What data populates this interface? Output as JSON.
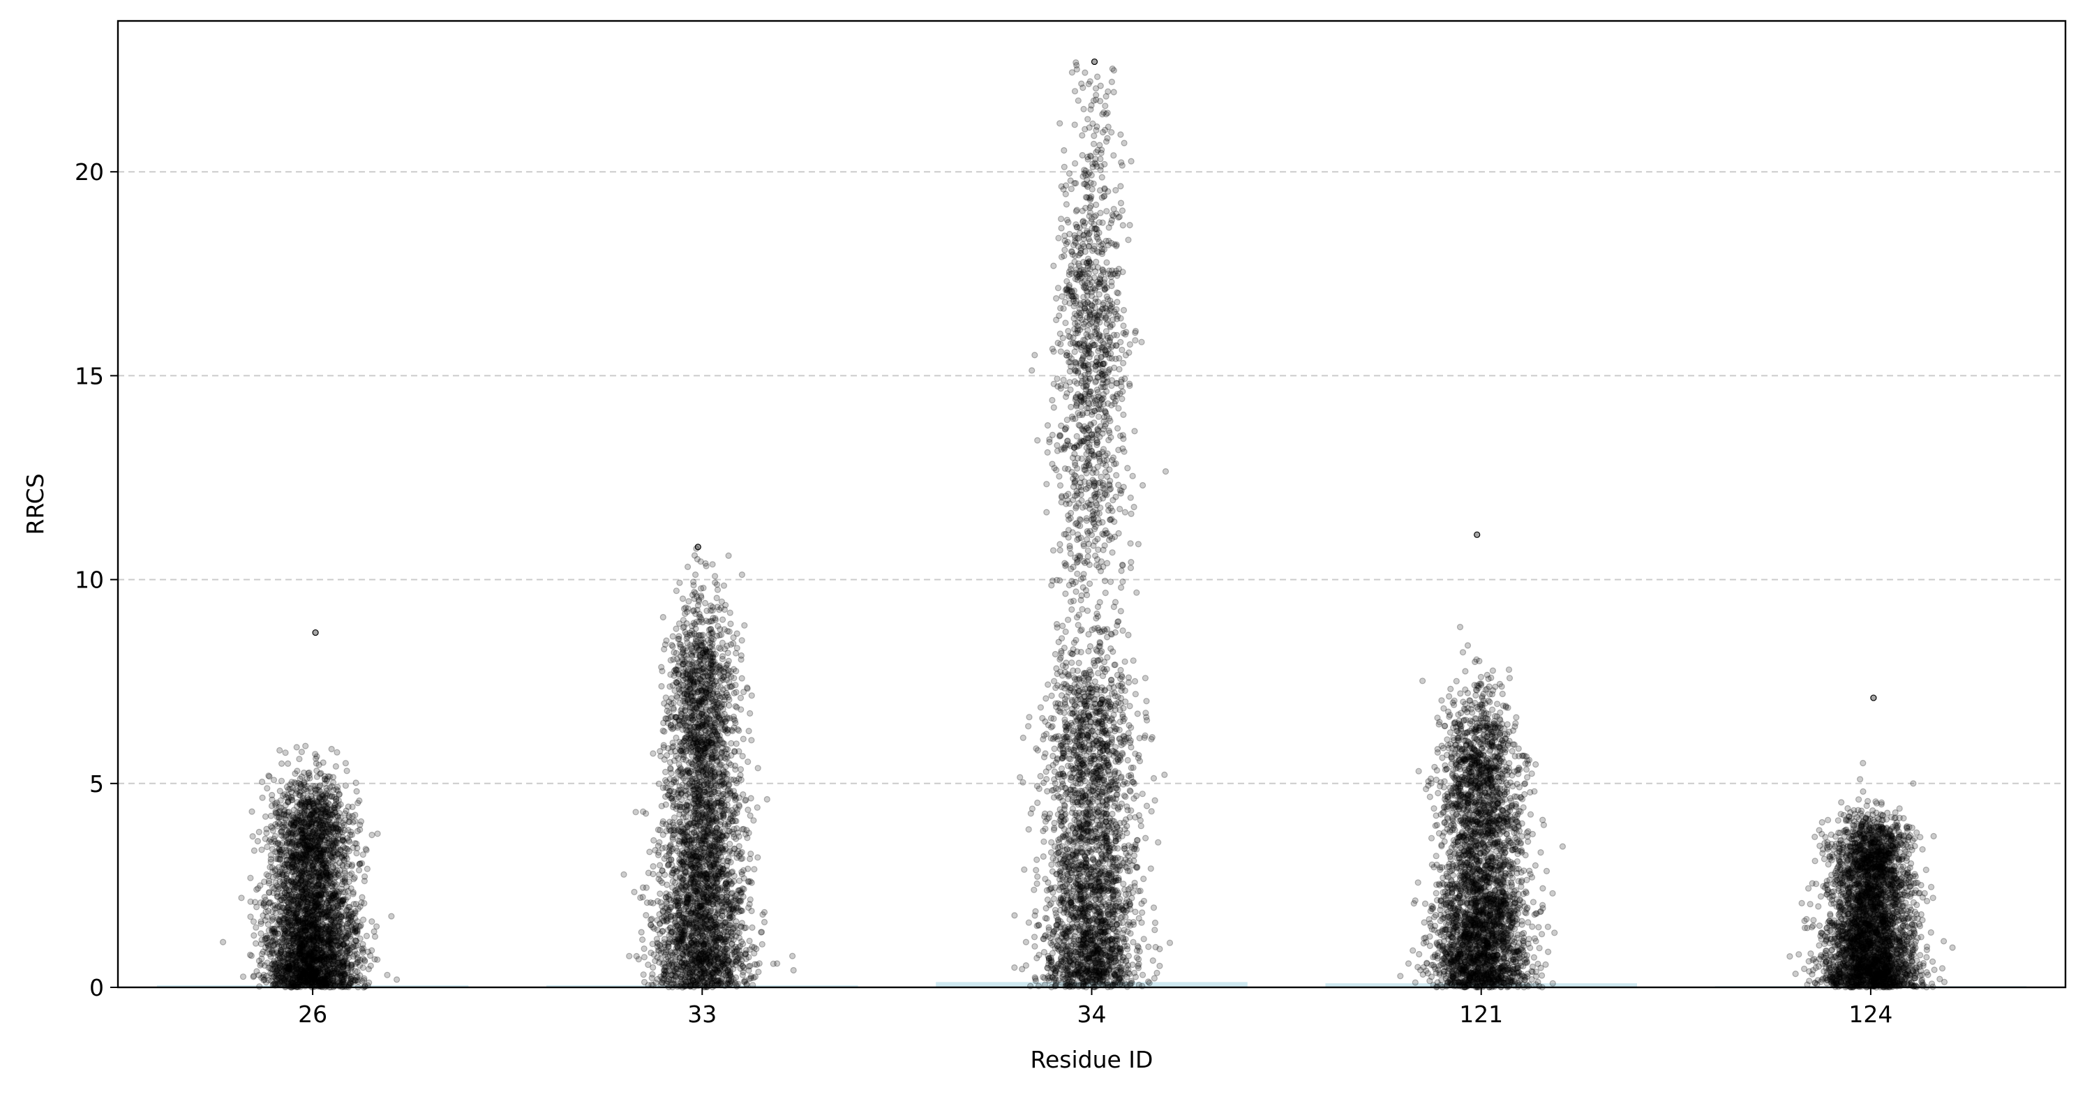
{
  "chart_data": {
    "type": "scatter",
    "subtype": "strip-plot with bars",
    "title": "",
    "xlabel": "Residue ID",
    "ylabel": "RRCS",
    "categories": [
      "26",
      "33",
      "34",
      "121",
      "124"
    ],
    "ylim": [
      0,
      23.7
    ],
    "yticks": [
      0,
      5,
      10,
      15,
      20
    ],
    "grid": {
      "axis": "y",
      "style": "dashed",
      "color": "#cccccc"
    },
    "legend": "none",
    "bar_color": "#add8e6",
    "point_color": "#000000",
    "point_alpha": 0.2,
    "bar_values": [
      0.05,
      0.05,
      0.13,
      0.1,
      0.03
    ],
    "distributions": [
      {
        "category": "26",
        "median": 2.2,
        "max": 8.7,
        "jitter_spread": 0.16,
        "n_points": 3400
      },
      {
        "category": "33",
        "median": 4.0,
        "max": 10.8,
        "jitter_spread": 0.16,
        "n_points": 3400
      },
      {
        "category": "34",
        "median": 3.5,
        "max": 22.7,
        "jitter_spread": 0.16,
        "n_points": 3800
      },
      {
        "category": "121",
        "median": 3.0,
        "max": 11.1,
        "jitter_spread": 0.16,
        "n_points": 3400
      },
      {
        "category": "124",
        "median": 1.8,
        "max": 7.1,
        "jitter_spread": 0.16,
        "n_points": 3400
      }
    ]
  }
}
